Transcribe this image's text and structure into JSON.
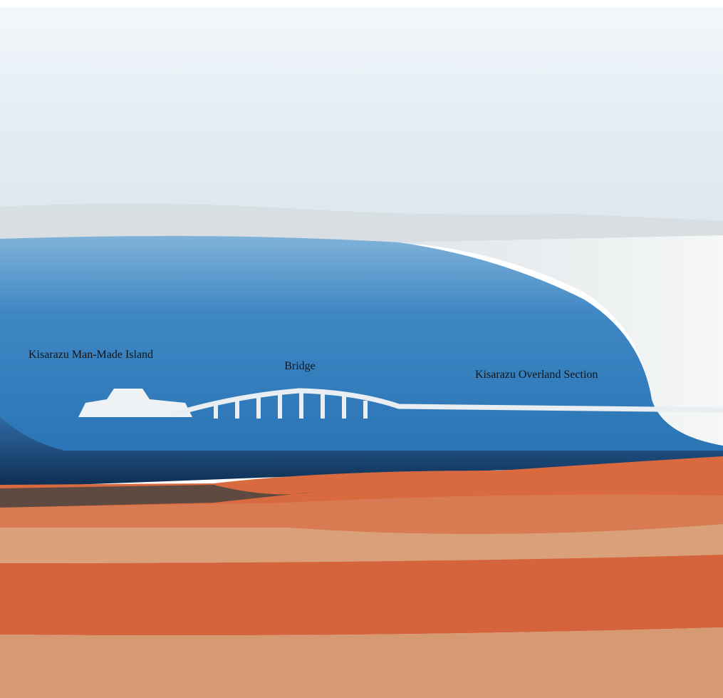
{
  "labels": [
    {
      "text": "Kisarazu Man-Made Island"
    },
    {
      "text": "Bridge"
    },
    {
      "text": "Kisarazu Overland Section"
    }
  ]
}
